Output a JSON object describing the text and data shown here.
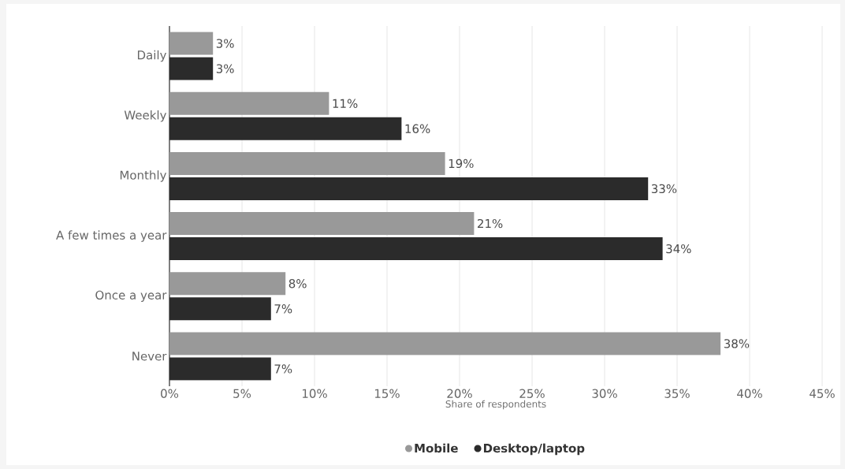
{
  "chart_data": {
    "type": "bar",
    "orientation": "horizontal",
    "xlabel": "Share of respondents",
    "categories": [
      "Daily",
      "Weekly",
      "Monthly",
      "A few times a year",
      "Once a year",
      "Never"
    ],
    "series": [
      {
        "name": "Mobile",
        "color": "#999999",
        "values": [
          3,
          11,
          19,
          21,
          8,
          38
        ],
        "value_labels": [
          "3%",
          "11%",
          "19%",
          "21%",
          "8%",
          "38%"
        ]
      },
      {
        "name": "Desktop/laptop",
        "color": "#2b2b2b",
        "values": [
          3,
          16,
          33,
          34,
          7,
          7
        ],
        "value_labels": [
          "3%",
          "16%",
          "33%",
          "34%",
          "7%",
          "7%"
        ]
      }
    ],
    "xlim": [
      0,
      45
    ],
    "xticks": [
      {
        "value": 0,
        "label": "0%"
      },
      {
        "value": 5,
        "label": "5%"
      },
      {
        "value": 10,
        "label": "10%"
      },
      {
        "value": 15,
        "label": "15%"
      },
      {
        "value": 20,
        "label": "20%"
      },
      {
        "value": 25,
        "label": "25%"
      },
      {
        "value": 30,
        "label": "30%"
      },
      {
        "value": 35,
        "label": "35%"
      },
      {
        "value": 40,
        "label": "40%"
      },
      {
        "value": 45,
        "label": "45%"
      }
    ],
    "grid": "x",
    "legend": "bottom"
  }
}
